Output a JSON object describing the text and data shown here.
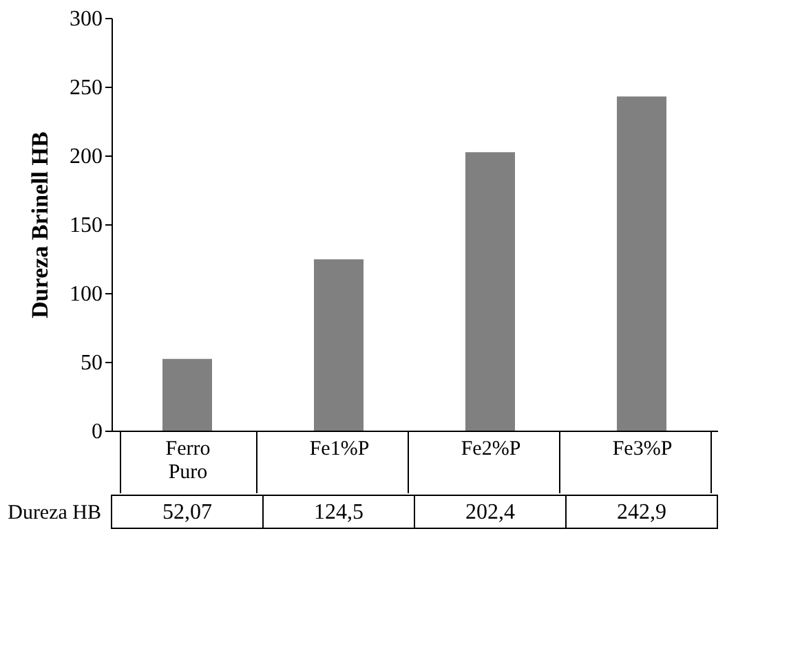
{
  "chart_data": {
    "type": "bar",
    "ylabel": "Dureza Brinell HB",
    "categories": [
      "Ferro Puro",
      "Fe1%P",
      "Fe2%P",
      "Fe3%P"
    ],
    "series": [
      {
        "name": "Dureza HB",
        "color": "#808080",
        "values": [
          52.07,
          124.5,
          202.4,
          242.9
        ],
        "value_labels": [
          "52,07",
          "124,5",
          "202,4",
          "242,9"
        ]
      }
    ],
    "ylim": [
      0,
      300
    ],
    "yticks": [
      0,
      50,
      100,
      150,
      200,
      250,
      300
    ]
  }
}
